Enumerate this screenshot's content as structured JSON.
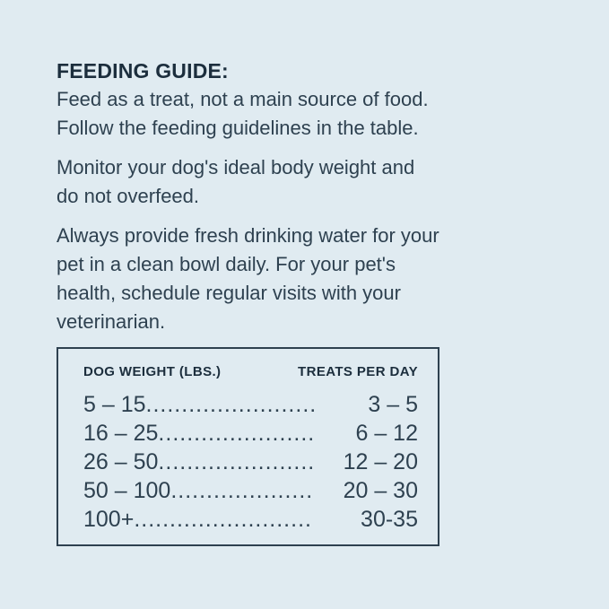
{
  "colors": {
    "background": "#e0ebf1",
    "heading_text": "#1c2e3d",
    "body_text": "#2e4150",
    "table_border": "#2e4150"
  },
  "heading": "FEEDING GUIDE:",
  "paragraphs": [
    "Feed as a treat, not a main source of food.\nFollow the feeding guidelines in the table.",
    "Monitor your dog's ideal body weight and\ndo not overfeed.",
    "Always provide fresh drinking water for your\npet in a clean bowl daily. For your pet's\nhealth, schedule regular visits with your\nveterinarian."
  ],
  "table": {
    "columns": [
      "DOG WEIGHT (LBS.)",
      "TREATS PER DAY"
    ],
    "rows": [
      {
        "weight": "5 – 15",
        "treats": "3 – 5"
      },
      {
        "weight": "16 – 25",
        "treats": "6 – 12"
      },
      {
        "weight": "26 – 50",
        "treats": "12 – 20"
      },
      {
        "weight": "50 – 100",
        "treats": "20 – 30"
      },
      {
        "weight": "100+",
        "treats": "30-35"
      }
    ]
  }
}
